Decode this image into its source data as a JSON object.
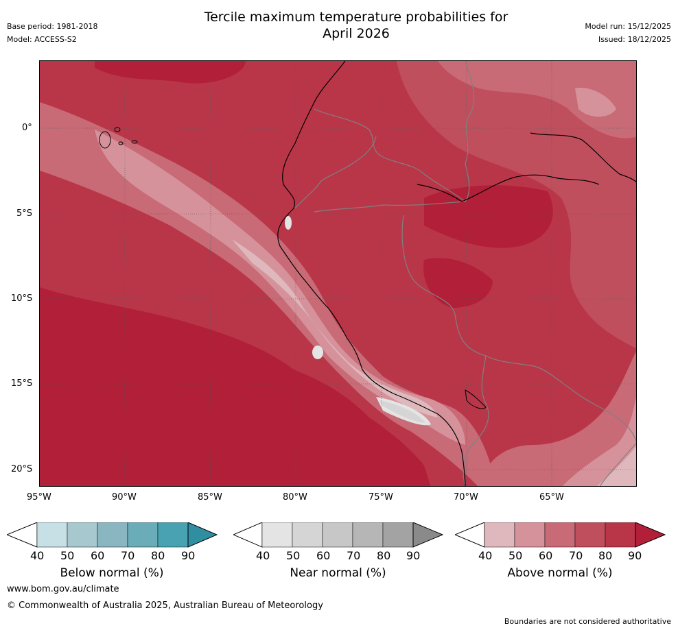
{
  "header": {
    "title_line1": "Tercile maximum temperature probabilities for",
    "title_line2": "April 2026",
    "base_period": "Base period: 1981-2018",
    "model": "Model: ACCESS-S2",
    "model_run": "Model run: 15/12/2025",
    "issued": "Issued: 18/12/2025"
  },
  "map": {
    "lat_labels": [
      "0°",
      "5°S",
      "10°S",
      "15°S",
      "20°S"
    ],
    "lon_labels": [
      "95°W",
      "90°W",
      "85°W",
      "80°W",
      "75°W",
      "70°W",
      "65°W"
    ],
    "colors": {
      "above_40": "#dfb8bd",
      "above_50": "#d6929b",
      "above_60": "#c96a77",
      "above_70": "#c04f5e",
      "above_80": "#b93649",
      "above_90": "#b21f38",
      "near_40": "#e4e4e4",
      "coastline": "#000000",
      "border": "#808080"
    }
  },
  "colorbars": {
    "below": {
      "label": "Below normal (%)",
      "ticks": [
        "40",
        "50",
        "60",
        "70",
        "80",
        "90"
      ],
      "colors": [
        "#c6e0e5",
        "#a7c8cf",
        "#8ab6c2",
        "#6aacb8",
        "#49a2b1",
        "#2f8ea0"
      ]
    },
    "near": {
      "label": "Near normal (%)",
      "ticks": [
        "40",
        "50",
        "60",
        "70",
        "80",
        "90"
      ],
      "colors": [
        "#e4e4e4",
        "#d5d5d5",
        "#c7c7c7",
        "#b6b6b6",
        "#a3a3a3",
        "#8a8a8a"
      ]
    },
    "above": {
      "label": "Above normal (%)",
      "ticks": [
        "40",
        "50",
        "60",
        "70",
        "80",
        "90"
      ],
      "colors": [
        "#dfb8bd",
        "#d6929b",
        "#c96a77",
        "#c04f5e",
        "#b93649",
        "#b21f38"
      ]
    }
  },
  "footer": {
    "url": "www.bom.gov.au/climate",
    "copyright": "© Commonwealth of Australia 2025, Australian Bureau of Meteorology",
    "disclaimer": "Boundaries are not considered authoritative"
  }
}
